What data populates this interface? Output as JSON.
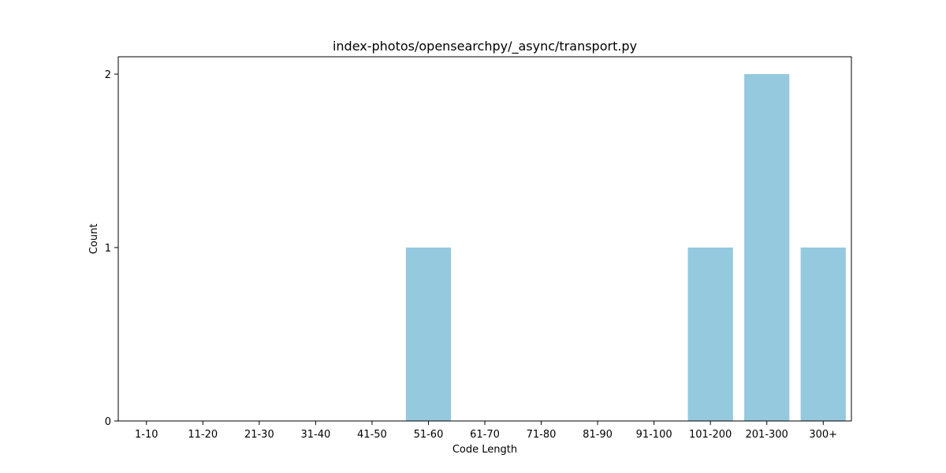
{
  "chart_data": {
    "type": "bar",
    "title": "index-photos/opensearchpy/_async/transport.py",
    "xlabel": "Code Length",
    "ylabel": "Count",
    "categories": [
      "1-10",
      "11-20",
      "21-30",
      "31-40",
      "41-50",
      "51-60",
      "61-70",
      "71-80",
      "81-90",
      "91-100",
      "101-200",
      "201-300",
      "300+"
    ],
    "values": [
      0,
      0,
      0,
      0,
      0,
      1,
      0,
      0,
      0,
      0,
      1,
      2,
      1
    ],
    "ylim": [
      0,
      2.1
    ],
    "yticks": [
      0,
      1,
      2
    ],
    "grid": false,
    "legend": "none",
    "bar_color": "#95c9de"
  }
}
